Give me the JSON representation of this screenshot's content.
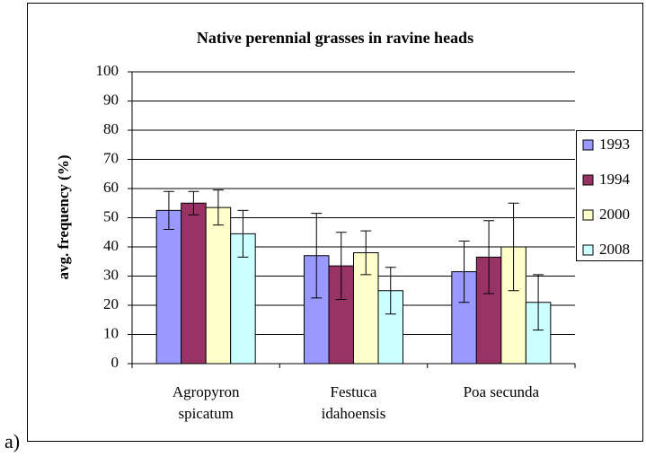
{
  "chart_data": {
    "type": "bar",
    "title": "Native perennial grasses in ravine heads",
    "panel_label": "a)",
    "y_label": "avg. frequency (%)",
    "categories": [
      "Agropyron spicatum",
      "Festuca idahoensis",
      "Poa secunda"
    ],
    "series": [
      {
        "name": "1993",
        "color": "#9999ff",
        "values": [
          52.5,
          37,
          31.5
        ],
        "errors": [
          6.5,
          14.5,
          10.5
        ]
      },
      {
        "name": "1994",
        "color": "#993366",
        "values": [
          55,
          33.5,
          36.5
        ],
        "errors": [
          4,
          11.5,
          12.5
        ]
      },
      {
        "name": "2000",
        "color": "#ffffcc",
        "values": [
          53.5,
          38,
          40
        ],
        "errors": [
          6,
          7.5,
          15
        ]
      },
      {
        "name": "2008",
        "color": "#ccffff",
        "values": [
          44.5,
          25,
          21
        ],
        "errors": [
          8,
          8,
          9.5
        ]
      }
    ],
    "ylim": [
      0,
      100
    ],
    "yticks": [
      0,
      10,
      20,
      30,
      40,
      50,
      60,
      70,
      80,
      90,
      100
    ],
    "grid": true,
    "legend": "right"
  }
}
